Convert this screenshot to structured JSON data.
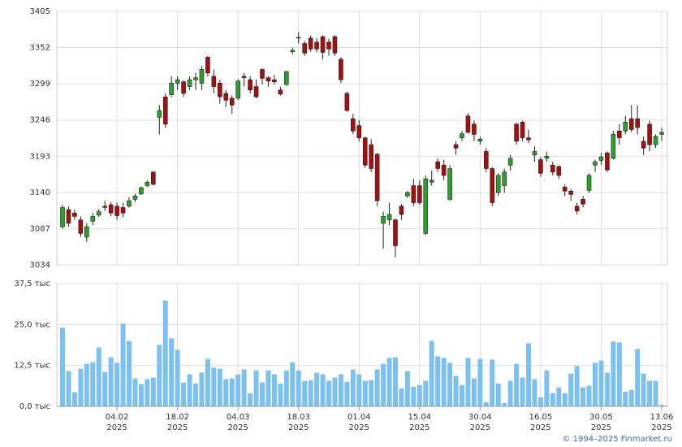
{
  "chart_data": [
    {
      "type": "candlestick",
      "ylim": [
        3034,
        3405
      ],
      "yticks": [
        3034,
        3087,
        3140,
        3193,
        3246,
        3299,
        3352,
        3405
      ],
      "grid": true,
      "up_color": "#2ca02c",
      "down_color": "#a50f0f",
      "open": [
        3090,
        3115,
        3110,
        3100,
        3075,
        3098,
        3107,
        3120,
        3122,
        3120,
        3118,
        3120,
        3130,
        3138,
        3150,
        3170,
        3250,
        3280,
        3283,
        3300,
        3302,
        3295,
        3305,
        3300,
        3338,
        3310,
        3300,
        3285,
        3278,
        3278,
        3310,
        3305,
        3295,
        3320,
        3308,
        3305,
        3290,
        3298,
        3346,
        3366,
        3358,
        3366,
        3360,
        3368,
        3360,
        3368,
        3335,
        3285,
        3248,
        3238,
        3220,
        3210,
        3196,
        3095,
        3100,
        3100,
        3120,
        3135,
        3150,
        3150,
        3080,
        3155,
        3185,
        3180,
        3130,
        3210,
        3220,
        3252,
        3240,
        3215,
        3200,
        3175,
        3140,
        3150,
        3180,
        3240,
        3243,
        3220,
        3195,
        3188,
        3190,
        3180,
        3178,
        3148,
        3142,
        3120,
        3130,
        3143,
        3180,
        3187,
        3198,
        3190,
        3230,
        3230,
        3248,
        3248,
        3215,
        3240,
        3210,
        3225
      ],
      "high": [
        3122,
        3120,
        3115,
        3105,
        3095,
        3110,
        3116,
        3128,
        3126,
        3125,
        3125,
        3133,
        3138,
        3149,
        3158,
        3171,
        3268,
        3285,
        3310,
        3310,
        3304,
        3310,
        3315,
        3325,
        3340,
        3320,
        3305,
        3290,
        3282,
        3306,
        3315,
        3310,
        3305,
        3322,
        3310,
        3312,
        3295,
        3318,
        3352,
        3375,
        3362,
        3370,
        3366,
        3370,
        3365,
        3370,
        3338,
        3287,
        3255,
        3246,
        3222,
        3218,
        3198,
        3112,
        3125,
        3102,
        3123,
        3142,
        3160,
        3158,
        3165,
        3172,
        3190,
        3188,
        3180,
        3215,
        3230,
        3256,
        3245,
        3222,
        3205,
        3177,
        3168,
        3175,
        3195,
        3242,
        3245,
        3232,
        3208,
        3192,
        3200,
        3185,
        3180,
        3152,
        3145,
        3125,
        3135,
        3168,
        3188,
        3198,
        3200,
        3230,
        3240,
        3252,
        3268,
        3268,
        3222,
        3245,
        3225,
        3235
      ],
      "low": [
        3087,
        3090,
        3100,
        3075,
        3068,
        3092,
        3104,
        3113,
        3105,
        3100,
        3104,
        3118,
        3126,
        3136,
        3148,
        3150,
        3225,
        3235,
        3280,
        3290,
        3280,
        3290,
        3290,
        3290,
        3310,
        3285,
        3270,
        3265,
        3255,
        3275,
        3295,
        3285,
        3278,
        3298,
        3295,
        3298,
        3282,
        3296,
        3342,
        3358,
        3340,
        3346,
        3345,
        3335,
        3340,
        3340,
        3300,
        3258,
        3225,
        3215,
        3176,
        3170,
        3120,
        3058,
        3092,
        3045,
        3100,
        3132,
        3120,
        3122,
        3078,
        3150,
        3170,
        3158,
        3128,
        3195,
        3215,
        3226,
        3215,
        3210,
        3170,
        3120,
        3135,
        3140,
        3172,
        3210,
        3215,
        3212,
        3185,
        3163,
        3185,
        3165,
        3160,
        3135,
        3128,
        3108,
        3118,
        3140,
        3170,
        3180,
        3170,
        3188,
        3210,
        3225,
        3228,
        3225,
        3195,
        3200,
        3205,
        3215
      ],
      "close": [
        3118,
        3095,
        3105,
        3080,
        3090,
        3105,
        3112,
        3118,
        3110,
        3106,
        3110,
        3128,
        3135,
        3147,
        3155,
        3152,
        3260,
        3240,
        3300,
        3305,
        3285,
        3305,
        3308,
        3320,
        3315,
        3295,
        3280,
        3275,
        3268,
        3303,
        3308,
        3290,
        3280,
        3307,
        3303,
        3302,
        3284,
        3317,
        3348,
        3367,
        3344,
        3350,
        3350,
        3345,
        3350,
        3344,
        3305,
        3260,
        3230,
        3220,
        3180,
        3175,
        3128,
        3105,
        3108,
        3062,
        3108,
        3140,
        3125,
        3125,
        3160,
        3158,
        3175,
        3165,
        3175,
        3205,
        3226,
        3228,
        3225,
        3218,
        3175,
        3125,
        3165,
        3170,
        3190,
        3215,
        3220,
        3217,
        3200,
        3168,
        3193,
        3170,
        3165,
        3142,
        3137,
        3113,
        3123,
        3165,
        3185,
        3192,
        3173,
        3225,
        3220,
        3243,
        3232,
        3235,
        3205,
        3210,
        3222,
        3228
      ]
    },
    {
      "type": "bar",
      "ylim": [
        0,
        37.5
      ],
      "yticks": [
        {
          "value": 0,
          "label": "0,0 тыс"
        },
        {
          "value": 12.5,
          "label": "12,5 тыс"
        },
        {
          "value": 25,
          "label": "25,0 тыс"
        },
        {
          "value": 37.5,
          "label": "37,5 тыс"
        }
      ],
      "grid": true,
      "color": "#7cc0ef",
      "categories": [
        null,
        null,
        null,
        null,
        null,
        null,
        null,
        null,
        null,
        "04.02\n2025",
        null,
        null,
        null,
        null,
        null,
        null,
        null,
        null,
        null,
        "18.02\n2025",
        null,
        null,
        null,
        null,
        null,
        null,
        null,
        null,
        null,
        "04.03\n2025",
        null,
        null,
        null,
        null,
        null,
        null,
        null,
        null,
        null,
        "18.03\n2025",
        null,
        null,
        null,
        null,
        null,
        null,
        null,
        null,
        null,
        "01.04\n2025",
        null,
        null,
        null,
        null,
        null,
        null,
        null,
        null,
        null,
        "15.04\n2025",
        null,
        null,
        null,
        null,
        null,
        null,
        null,
        null,
        null,
        "30.04\n2025",
        null,
        null,
        null,
        null,
        null,
        null,
        null,
        null,
        null,
        "16.05\n2025",
        null,
        null,
        null,
        null,
        null,
        null,
        null,
        null,
        null,
        "30.05\n2025",
        null,
        null,
        null,
        null,
        null,
        null,
        null,
        null,
        null,
        "13.06\n2025"
      ],
      "values": [
        24,
        10.8,
        4.3,
        11.5,
        13,
        13.5,
        18,
        10.5,
        15,
        13.3,
        25.3,
        20,
        8.5,
        6.8,
        8.3,
        8.8,
        18.8,
        32.3,
        20.8,
        17.3,
        7.3,
        9.8,
        7,
        10.3,
        14.5,
        11.8,
        11.5,
        8.3,
        8.5,
        9.8,
        11.3,
        4,
        11,
        7.3,
        11,
        9.8,
        7,
        11,
        13.5,
        11,
        7.8,
        8,
        10.3,
        9.8,
        7.8,
        8.8,
        9.8,
        7.5,
        11.3,
        9.8,
        7.8,
        8,
        11.3,
        13,
        14.8,
        15,
        5.5,
        10.8,
        6,
        6.5,
        7.8,
        20,
        15.3,
        14.8,
        13.3,
        9.3,
        6.5,
        14.8,
        8.5,
        14.5,
        1.3,
        14.3,
        7,
        1,
        7.8,
        13,
        8.8,
        19.3,
        8.3,
        2.8,
        11,
        4,
        5.8,
        4,
        10,
        12.3,
        5.8,
        6.3,
        13.3,
        14,
        10.3,
        19.8,
        19.5,
        4.5,
        5,
        17.5,
        10,
        7.8,
        7.8,
        0.5
      ]
    }
  ],
  "footer": "© 1994–2025 Finmarket.ru"
}
